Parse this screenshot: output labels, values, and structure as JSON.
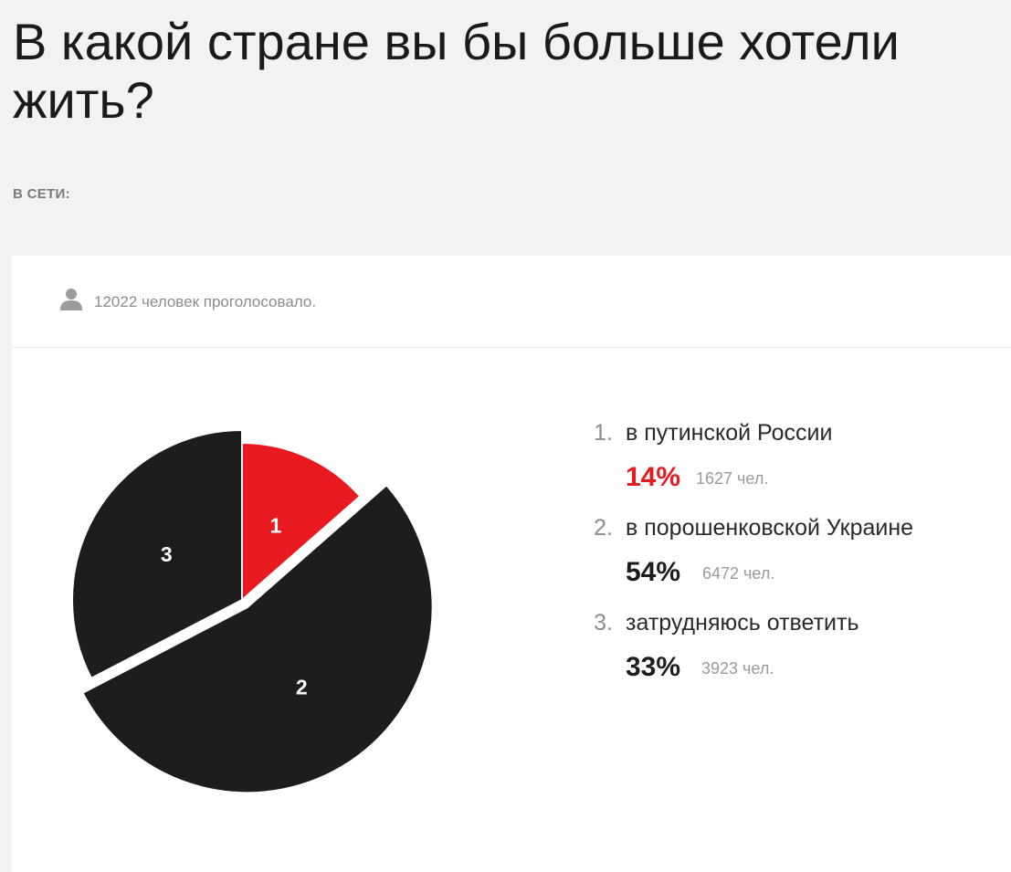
{
  "page": {
    "title": "В какой стране вы бы больше хотели жить?",
    "network_label": "В СЕТИ:"
  },
  "poll": {
    "votes_text": "12022 человек проголосовало.",
    "person_icon": "person-icon"
  },
  "colors": {
    "accent": "#e8191f",
    "dark": "#1f1c1d",
    "background": "#f2f2f2",
    "card": "#ffffff"
  },
  "legend": [
    {
      "num": "1.",
      "label": "в путинской России",
      "pct": "14%",
      "count": "1627 чел."
    },
    {
      "num": "2.",
      "label": "в порошенковской Украине",
      "pct": "54%",
      "count": "6472 чел."
    },
    {
      "num": "3.",
      "label": "затрудняюсь ответить",
      "pct": "33%",
      "count": "3923 чел."
    }
  ],
  "chart_data": {
    "type": "pie",
    "categories": [
      "1",
      "2",
      "3"
    ],
    "values": [
      1627,
      6472,
      3923
    ],
    "percent_labels": [
      "14%",
      "54%",
      "33%"
    ],
    "slice_labels": [
      "1",
      "2",
      "3"
    ],
    "colors": [
      "#e8191f",
      "#1f1c1d",
      "#1f1c1d"
    ],
    "exploded": [
      false,
      true,
      false
    ],
    "start_angle": "12 o'clock, clockwise"
  }
}
